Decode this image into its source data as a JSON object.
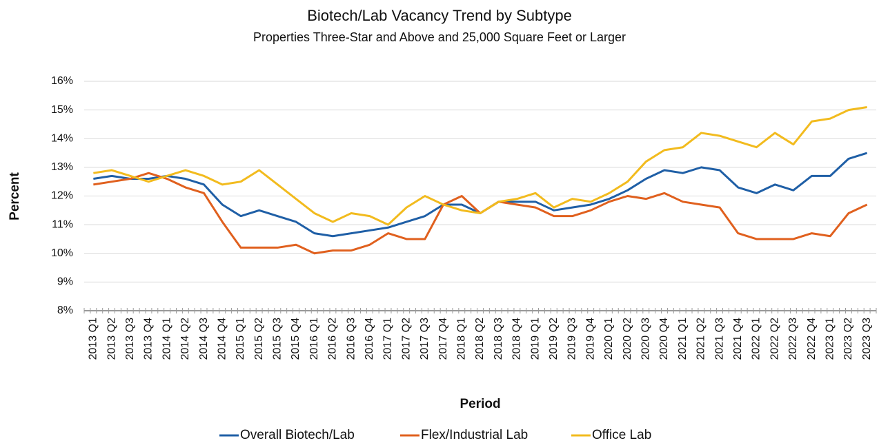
{
  "chart_data": {
    "type": "line",
    "title": "Biotech/Lab Vacancy Trend by Subtype",
    "subtitle": "Properties Three-Star and Above and 25,000 Square Feet or Larger",
    "x_label": "Period",
    "y_label": "Percent",
    "categories": [
      "2013 Q1",
      "2013 Q2",
      "2013 Q3",
      "2013 Q4",
      "2014 Q1",
      "2014 Q2",
      "2014 Q3",
      "2014 Q4",
      "2015 Q1",
      "2015 Q2",
      "2015 Q3",
      "2015 Q4",
      "2016 Q1",
      "2016 Q2",
      "2016 Q3",
      "2016 Q4",
      "2017 Q1",
      "2017 Q2",
      "2017 Q3",
      "2017 Q4",
      "2018 Q1",
      "2018 Q2",
      "2018 Q3",
      "2018 Q4",
      "2019 Q1",
      "2019 Q2",
      "2019 Q3",
      "2019 Q4",
      "2020 Q1",
      "2020 Q2",
      "2020 Q3",
      "2020 Q4",
      "2021 Q1",
      "2021 Q2",
      "2021 Q3",
      "2021 Q4",
      "2022 Q1",
      "2022 Q2",
      "2022 Q3",
      "2022 Q4",
      "2023 Q1",
      "2023 Q2",
      "2023 Q3"
    ],
    "series": [
      {
        "name": "Overall Biotech/Lab",
        "color": "#1f5fa6",
        "values": [
          12.6,
          12.7,
          12.6,
          12.6,
          12.7,
          12.6,
          12.4,
          11.7,
          11.3,
          11.5,
          11.3,
          11.1,
          10.7,
          10.6,
          10.7,
          10.8,
          10.9,
          11.1,
          11.3,
          11.7,
          11.7,
          11.4,
          11.8,
          11.8,
          11.8,
          11.5,
          11.6,
          11.7,
          11.9,
          12.2,
          12.6,
          12.9,
          12.8,
          13.0,
          12.9,
          12.3,
          12.1,
          12.4,
          12.2,
          12.7,
          12.7,
          13.3,
          13.5
        ]
      },
      {
        "name": "Flex/Industrial Lab",
        "color": "#e0601e",
        "values": [
          12.4,
          12.5,
          12.6,
          12.8,
          12.6,
          12.3,
          12.1,
          11.1,
          10.2,
          10.2,
          10.2,
          10.3,
          10.0,
          10.1,
          10.1,
          10.3,
          10.7,
          10.5,
          10.5,
          11.7,
          12.0,
          11.4,
          11.8,
          11.7,
          11.6,
          11.3,
          11.3,
          11.5,
          11.8,
          12.0,
          11.9,
          12.1,
          11.8,
          11.7,
          11.6,
          10.7,
          10.5,
          10.5,
          10.5,
          10.7,
          10.6,
          11.4,
          11.7
        ]
      },
      {
        "name": "Office Lab",
        "color": "#f2bb1e",
        "values": [
          12.8,
          12.9,
          12.7,
          12.5,
          12.7,
          12.9,
          12.7,
          12.4,
          12.5,
          12.9,
          12.4,
          11.9,
          11.4,
          11.1,
          11.4,
          11.3,
          11.0,
          11.6,
          12.0,
          11.7,
          11.5,
          11.4,
          11.8,
          11.9,
          12.1,
          11.6,
          11.9,
          11.8,
          12.1,
          12.5,
          13.2,
          13.6,
          13.7,
          14.2,
          14.1,
          13.9,
          13.7,
          14.2,
          13.8,
          14.6,
          14.7,
          15.0,
          15.1
        ]
      }
    ],
    "ylim": [
      8,
      16
    ],
    "yticks": [
      {
        "value": 8,
        "label": "8%"
      },
      {
        "value": 9,
        "label": "9%"
      },
      {
        "value": 10,
        "label": "10%"
      },
      {
        "value": 11,
        "label": "11%"
      },
      {
        "value": 12,
        "label": "12%"
      },
      {
        "value": 13,
        "label": "13%"
      },
      {
        "value": 14,
        "label": "14%"
      },
      {
        "value": 15,
        "label": "15%"
      },
      {
        "value": 16,
        "label": "16%"
      }
    ],
    "grid": true,
    "legend": "bottom"
  }
}
